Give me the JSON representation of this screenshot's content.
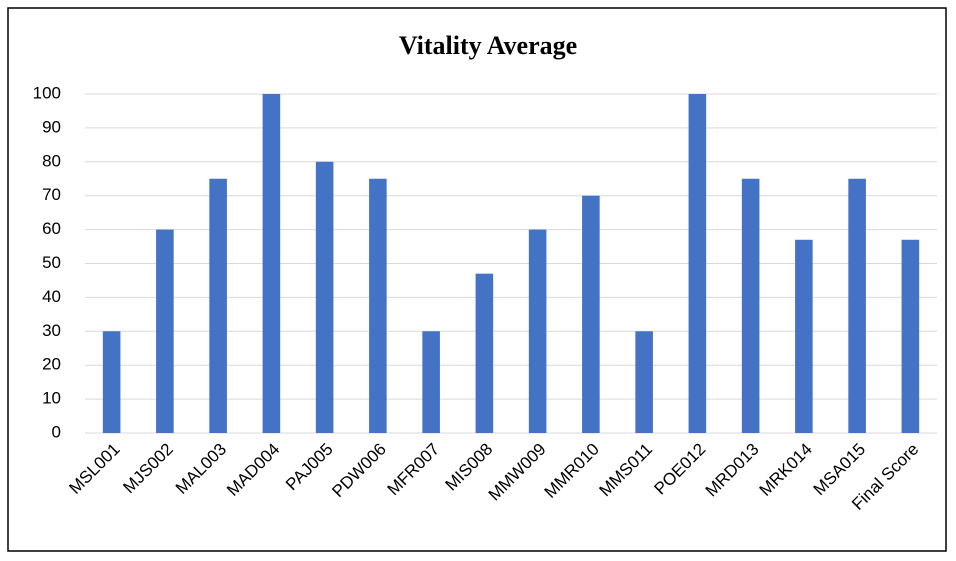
{
  "chart_data": {
    "type": "bar",
    "title": "Vitality Average",
    "categories": [
      "MSL001",
      "MJS002",
      "MAL003",
      "MAD004",
      "PAJ005",
      "PDW006",
      "MFR007",
      "MIS008",
      "MMW009",
      "MMR010",
      "MMS011",
      "POE012",
      "MRD013",
      "MRK014",
      "MSA015",
      "Final Score"
    ],
    "values": [
      30,
      60,
      75,
      100,
      80,
      75,
      30,
      47,
      60,
      70,
      30,
      100,
      75,
      57,
      75,
      57
    ],
    "color": "#4472c4",
    "ylim": [
      0,
      100
    ],
    "yticks": [
      0,
      10,
      20,
      30,
      40,
      50,
      60,
      70,
      80,
      90,
      100
    ],
    "grid": true
  }
}
